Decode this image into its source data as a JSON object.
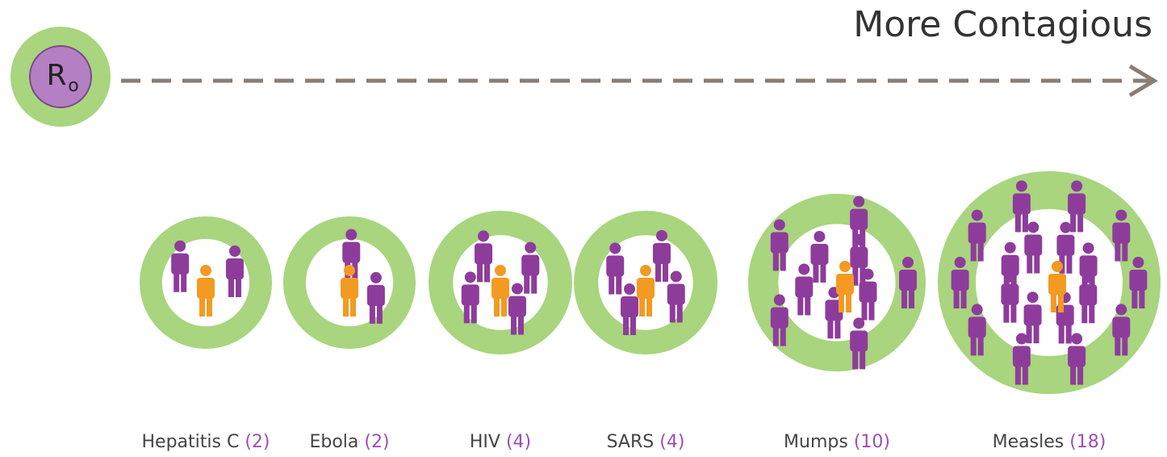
{
  "title": "More Contagious",
  "badge": {
    "letter": "R",
    "subscript": "o"
  },
  "diseases": [
    {
      "name": "Hepatitis C",
      "r0": 2,
      "r0_label": "(2)"
    },
    {
      "name": "Ebola",
      "r0": 2,
      "r0_label": "(2)"
    },
    {
      "name": "HIV",
      "r0": 4,
      "r0_label": "(4)"
    },
    {
      "name": "SARS",
      "r0": 4,
      "r0_label": "(4)"
    },
    {
      "name": "Mumps",
      "r0": 10,
      "r0_label": "(10)"
    },
    {
      "name": "Measles",
      "r0": 18,
      "r0_label": "(18)"
    }
  ]
}
